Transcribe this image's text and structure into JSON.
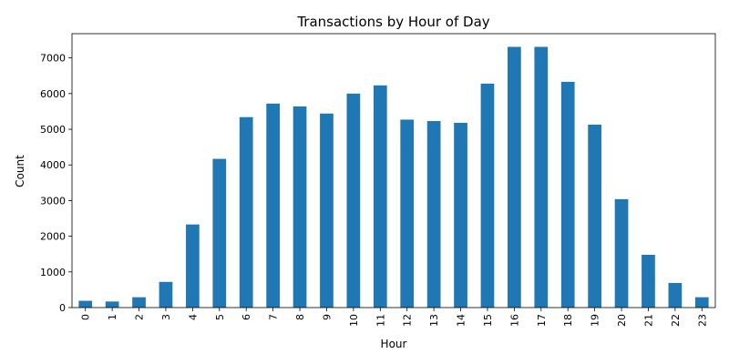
{
  "chart_data": {
    "type": "bar",
    "title": "Transactions by Hour of Day",
    "xlabel": "Hour",
    "ylabel": "Count",
    "categories": [
      "0",
      "1",
      "2",
      "3",
      "4",
      "5",
      "6",
      "7",
      "8",
      "9",
      "10",
      "11",
      "12",
      "13",
      "14",
      "15",
      "16",
      "17",
      "18",
      "19",
      "20",
      "21",
      "22",
      "23"
    ],
    "values": [
      190,
      170,
      290,
      720,
      2330,
      4170,
      5340,
      5720,
      5640,
      5440,
      6000,
      6230,
      5270,
      5230,
      5180,
      6280,
      7310,
      7310,
      6330,
      5130,
      3040,
      1480,
      690,
      290
    ],
    "yticks": [
      0,
      1000,
      2000,
      3000,
      4000,
      5000,
      6000,
      7000
    ],
    "ylim": [
      0,
      7680
    ],
    "grid": false,
    "legend": "none",
    "bar_color": "#1f77b4"
  }
}
